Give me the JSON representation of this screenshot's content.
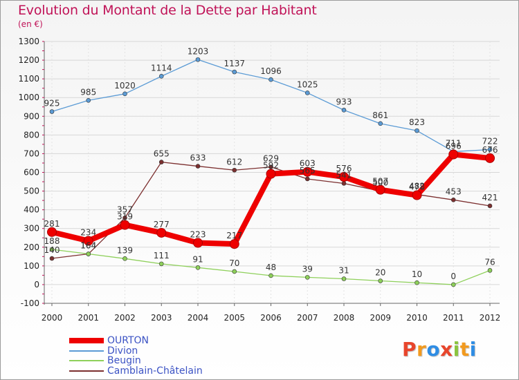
{
  "title": "Evolution du Montant de la Dette par Habitant",
  "subtitle": "(en €)",
  "logo": {
    "text": "Proxiti",
    "letters": [
      "P",
      "r",
      "o",
      "x",
      "i",
      "t",
      "i"
    ],
    "colors": [
      "#e8452c",
      "#f29a1f",
      "#2f8de4",
      "#e8452c",
      "#8bc43f",
      "#f29a1f",
      "#2f8de4"
    ]
  },
  "colors": {
    "title": "#c01257",
    "grid": "#d7d7d7",
    "legend_text": "#3b52c4"
  },
  "chart_data": {
    "type": "line",
    "title": "Evolution du Montant de la Dette par Habitant",
    "subtitle": "(en €)",
    "xlabel": "",
    "ylabel": "",
    "x": [
      "2000",
      "2001",
      "2002",
      "2003",
      "2004",
      "2005",
      "2006",
      "2007",
      "2008",
      "2009",
      "2010",
      "2011",
      "2012"
    ],
    "ylim": [
      -100,
      1300
    ],
    "yticks": [
      "-100",
      "0",
      "100",
      "200",
      "300",
      "400",
      "500",
      "600",
      "700",
      "800",
      "900",
      "1000",
      "1100",
      "1200",
      "1300"
    ],
    "grid": true,
    "legend_position": "bottom-left",
    "series": [
      {
        "name": "OURTON",
        "color": "#ee0000",
        "values": [
          281,
          234,
          319,
          277,
          223,
          217,
          592,
          603,
          576,
          507,
          478,
          696,
          676
        ],
        "labels": [
          "281",
          "234",
          "319",
          "277",
          "223",
          "217",
          "592",
          "603",
          "576",
          "507",
          "478",
          "696",
          "676"
        ]
      },
      {
        "name": "Divion",
        "color": "#5b9bd5",
        "values": [
          925,
          985,
          1020,
          1114,
          1203,
          1137,
          1096,
          1025,
          933,
          861,
          823,
          711,
          722
        ],
        "labels": [
          "925",
          "985",
          "1020",
          "1114",
          "1203",
          "1137",
          "1096",
          "1025",
          "933",
          "861",
          "823",
          "711",
          "722"
        ]
      },
      {
        "name": "Beugin",
        "color": "#8ed05a",
        "values": [
          188,
          164,
          139,
          111,
          91,
          70,
          48,
          39,
          31,
          20,
          10,
          0,
          76
        ],
        "labels": [
          "188",
          "164",
          "139",
          "111",
          "91",
          "70",
          "48",
          "39",
          "31",
          "20",
          "10",
          "0",
          "76"
        ]
      },
      {
        "name": "Camblain-Châtelain",
        "color": "#7c2f2f",
        "values": [
          140,
          164,
          357,
          655,
          633,
          612,
          629,
          565,
          541,
          500,
          482,
          453,
          421
        ],
        "labels": [
          "140",
          "164",
          "357",
          "655",
          "633",
          "612",
          "629",
          "565",
          "541",
          "500",
          "482",
          "453",
          "421"
        ]
      }
    ]
  }
}
